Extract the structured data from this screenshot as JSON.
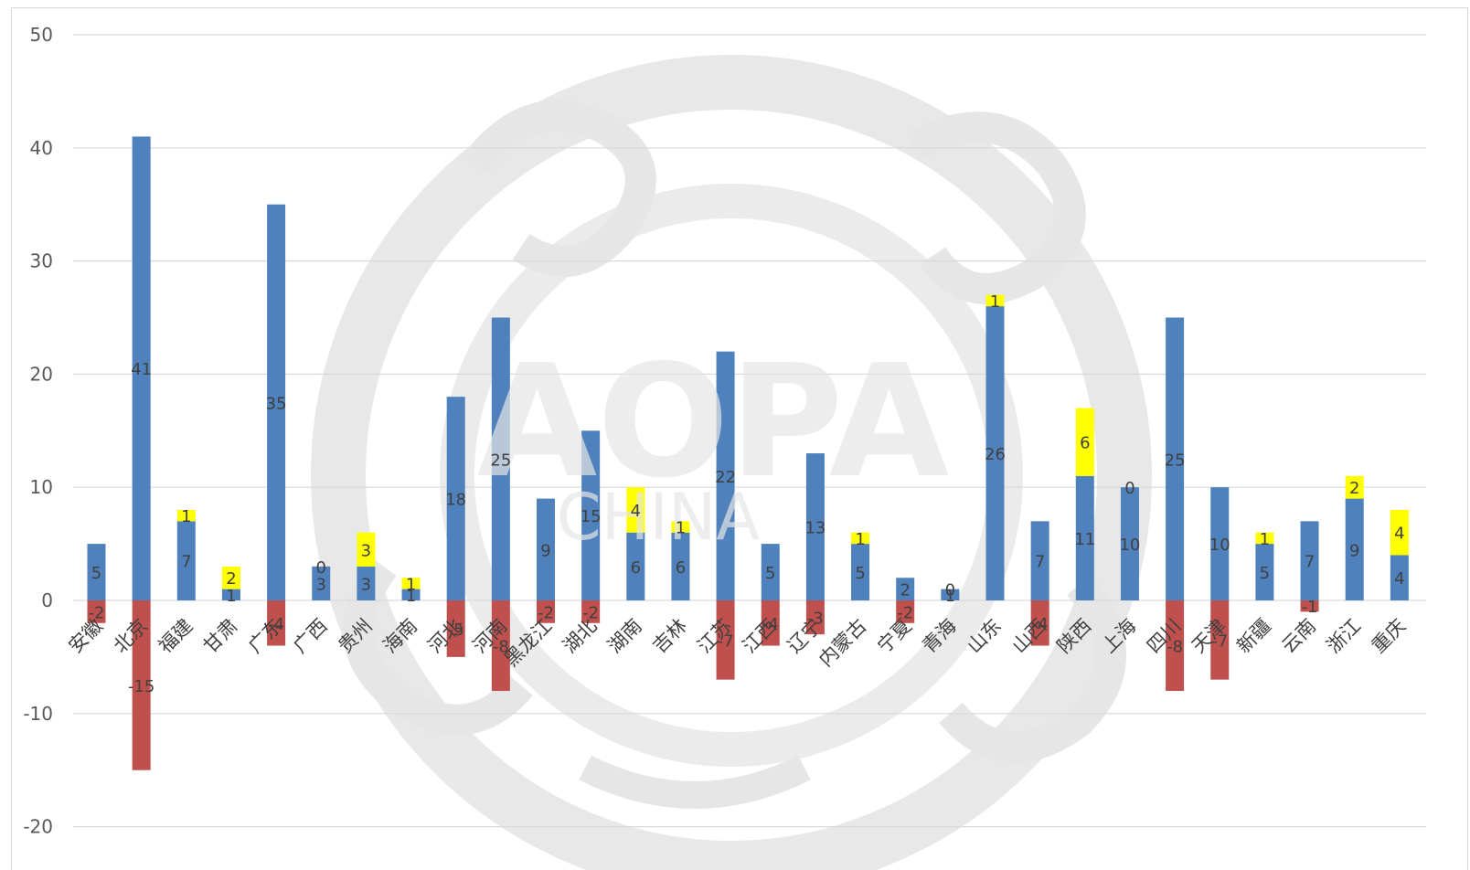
{
  "chart_data": {
    "type": "bar",
    "stacked": true,
    "title": "",
    "xlabel": "",
    "ylabel": "",
    "ylim": [
      -20,
      50
    ],
    "yticks": [
      50,
      40,
      30,
      20,
      10,
      0,
      -10,
      -20
    ],
    "grid": true,
    "legend": "none",
    "watermark": "AOPA CHINA",
    "colors": {
      "blue": "#4f81bd",
      "red": "#c0504d",
      "yellow": "#ffff00"
    },
    "categories": [
      "安徽",
      "北京",
      "福建",
      "甘肃",
      "广东",
      "广西",
      "贵州",
      "海南",
      "河北",
      "河南",
      "黑龙江",
      "湖北",
      "湖南",
      "吉林",
      "江苏",
      "江西",
      "辽宁",
      "内蒙古",
      "宁夏",
      "青海",
      "山东",
      "山西",
      "陕西",
      "上海",
      "四川",
      "天津",
      "新疆",
      "云南",
      "浙江",
      "重庆"
    ],
    "series": [
      {
        "color": "blue",
        "values": [
          5,
          41,
          7,
          1,
          35,
          3,
          3,
          1,
          18,
          25,
          9,
          15,
          6,
          6,
          22,
          5,
          13,
          5,
          2,
          1,
          26,
          7,
          11,
          10,
          25,
          10,
          5,
          7,
          9,
          4
        ]
      },
      {
        "color": "red",
        "values": [
          -2,
          -15,
          0,
          0,
          -4,
          0,
          0,
          0,
          -5,
          -8,
          -2,
          -2,
          0,
          0,
          -7,
          -4,
          -3,
          0,
          -2,
          0,
          0,
          -4,
          0,
          0,
          -8,
          -7,
          0,
          -1,
          0,
          0
        ]
      },
      {
        "color": "yellow",
        "values": [
          0,
          0,
          1,
          2,
          0,
          0,
          3,
          1,
          0,
          0,
          0,
          0,
          4,
          1,
          0,
          0,
          0,
          1,
          0,
          0,
          1,
          0,
          6,
          0,
          0,
          0,
          1,
          0,
          2,
          4
        ]
      }
    ],
    "blue_labels": [
      "5",
      "41",
      "7",
      "1",
      "35",
      "3",
      "3",
      "1",
      "18",
      "25",
      "9",
      "15",
      "6",
      "6",
      "22",
      "5",
      "13",
      "5",
      "2",
      "1",
      "26",
      "7",
      "11",
      "10",
      "25",
      "10",
      "5",
      "7",
      "9",
      "4"
    ],
    "red_labels": [
      "-2",
      "-15",
      "",
      "",
      "-4",
      "",
      "",
      "",
      "-5",
      "-8",
      "-2",
      "-2",
      "",
      "",
      "-7",
      "-4",
      "-3",
      "",
      "-2",
      "",
      "",
      "-4",
      "",
      "",
      "-8",
      "-7",
      "",
      "-1",
      "",
      ""
    ],
    "yellow_labels": [
      "",
      "",
      "1",
      "2",
      "",
      "0",
      "3",
      "1",
      "",
      "",
      "",
      "",
      "4",
      "1",
      "",
      "",
      "",
      "1",
      "",
      "0",
      "1",
      "",
      "6",
      "0",
      "",
      "",
      "1",
      "",
      "2",
      "4"
    ]
  }
}
